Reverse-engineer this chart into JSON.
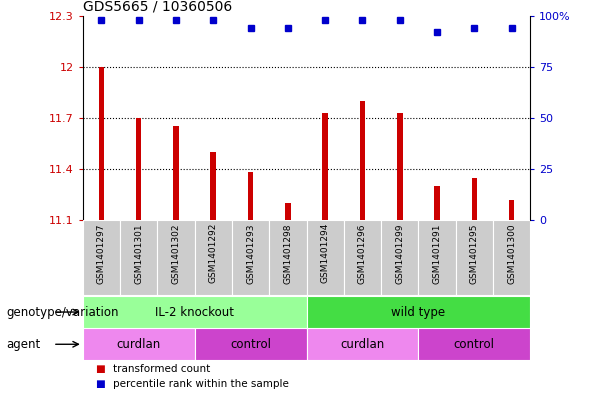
{
  "title": "GDS5665 / 10360506",
  "samples": [
    "GSM1401297",
    "GSM1401301",
    "GSM1401302",
    "GSM1401292",
    "GSM1401293",
    "GSM1401298",
    "GSM1401294",
    "GSM1401296",
    "GSM1401299",
    "GSM1401291",
    "GSM1401295",
    "GSM1401300"
  ],
  "bar_values": [
    12.0,
    11.7,
    11.65,
    11.5,
    11.38,
    11.2,
    11.73,
    11.8,
    11.73,
    11.3,
    11.35,
    11.22
  ],
  "dot_values": [
    98,
    98,
    98,
    98,
    94,
    94,
    98,
    98,
    98,
    92,
    94,
    94
  ],
  "bar_base": 11.1,
  "ylim_left": [
    11.1,
    12.3
  ],
  "ylim_right": [
    0,
    100
  ],
  "yticks_left": [
    11.1,
    11.4,
    11.7,
    12.0,
    12.3
  ],
  "yticks_right": [
    0,
    25,
    50,
    75,
    100
  ],
  "ytick_labels_left": [
    "11.1",
    "11.4",
    "11.7",
    "12",
    "12.3"
  ],
  "ytick_labels_right": [
    "0",
    "25",
    "50",
    "75",
    "100%"
  ],
  "hlines": [
    12.0,
    11.7,
    11.4
  ],
  "bar_color": "#cc0000",
  "dot_color": "#0000cc",
  "left_tick_color": "#cc0000",
  "right_tick_color": "#0000cc",
  "genotype_groups": [
    {
      "label": "IL-2 knockout",
      "start": 0,
      "end": 6,
      "color": "#99ff99"
    },
    {
      "label": "wild type",
      "start": 6,
      "end": 12,
      "color": "#44dd44"
    }
  ],
  "agent_groups": [
    {
      "label": "curdlan",
      "start": 0,
      "end": 3,
      "color": "#ee88ee"
    },
    {
      "label": "control",
      "start": 3,
      "end": 6,
      "color": "#cc44cc"
    },
    {
      "label": "curdlan",
      "start": 6,
      "end": 9,
      "color": "#ee88ee"
    },
    {
      "label": "control",
      "start": 9,
      "end": 12,
      "color": "#cc44cc"
    }
  ],
  "legend_items": [
    {
      "label": "transformed count",
      "color": "#cc0000"
    },
    {
      "label": "percentile rank within the sample",
      "color": "#0000cc"
    }
  ],
  "xlabel_genotype": "genotype/variation",
  "xlabel_agent": "agent",
  "fig_width": 6.13,
  "fig_height": 3.93,
  "dpi": 100
}
